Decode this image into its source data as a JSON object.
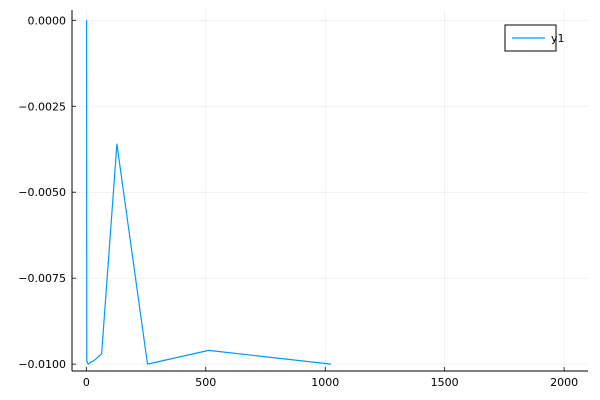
{
  "chart_data": {
    "type": "line",
    "title": "",
    "xlabel": "",
    "ylabel": "",
    "xlim": [
      -60,
      2100
    ],
    "ylim": [
      -0.0102,
      0.0003
    ],
    "x_ticks": [
      0,
      500,
      1000,
      1500,
      2000
    ],
    "x_tick_labels": [
      "0",
      "500",
      "1000",
      "1500",
      "2000"
    ],
    "y_ticks": [
      0.0,
      -0.0025,
      -0.005,
      -0.0075,
      -0.01
    ],
    "y_tick_labels": [
      "0.0000",
      "−0.0025",
      "−0.0050",
      "−0.0075",
      "−0.0100"
    ],
    "grid": true,
    "legend_position": "top-right",
    "series": [
      {
        "name": "y1",
        "color": "#009AFA",
        "x": [
          1,
          2,
          4,
          8,
          16,
          32,
          64,
          128,
          256,
          512,
          1024
        ],
        "y": [
          0.0,
          -0.0099,
          -0.00995,
          -0.01,
          -0.00995,
          -0.0099,
          -0.0097,
          -0.0036,
          -0.01,
          -0.0096,
          -0.01
        ]
      }
    ]
  }
}
